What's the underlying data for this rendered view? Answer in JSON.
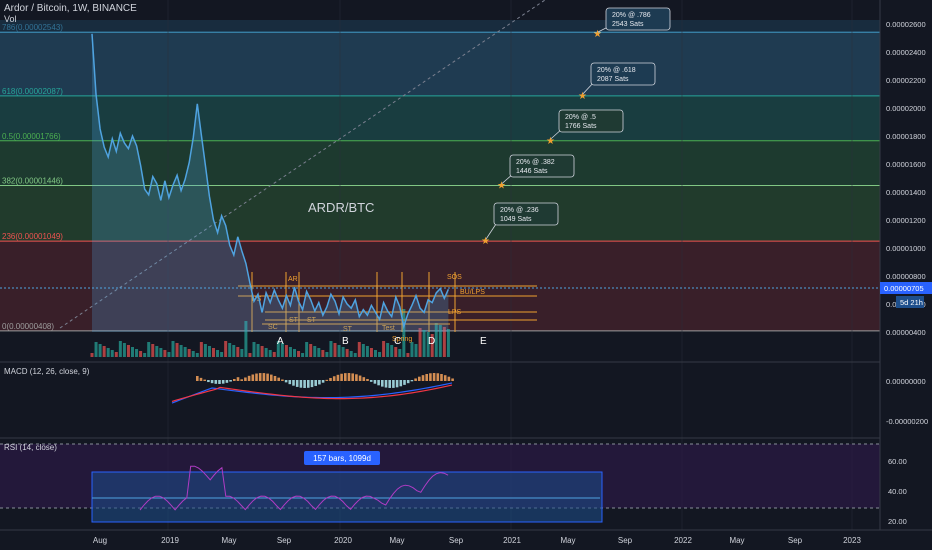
{
  "header": {
    "title": "Ardor / Bitcoin, 1W, BINANCE",
    "vol_label": "Vol"
  },
  "center_label": "ARDR/BTC",
  "colors": {
    "bg": "#131722",
    "price_line": "#4fa3e0",
    "macd_line": "#2962ff",
    "signal_line": "#f23645",
    "rsi_line": "#b03cc4",
    "grid": "#2a2e39",
    "fib_786": "#4fc3f7",
    "fib_618": "#26a69a",
    "fib_5": "#4caf50",
    "fib_382": "#81c784",
    "fib_236": "#ef5350",
    "fib_0": "#9e9e9e",
    "wyckoff": "#f0a030",
    "target_star": "#f0a030"
  },
  "fib_levels": [
    {
      "label": "786(0.00002543)",
      "value": 2.543e-05
    },
    {
      "label": "618(0.00002087)",
      "value": 2.087e-05
    },
    {
      "label": "0.5(0.00001766)",
      "value": 1.766e-05
    },
    {
      "label": "382(0.00001446)",
      "value": 1.446e-05
    },
    {
      "label": "236(0.00001049)",
      "value": 1.049e-05
    },
    {
      "label": "0(0.00000408)",
      "value": 4.08e-06
    }
  ],
  "targets": [
    {
      "line1": "20% @ .786",
      "line2": "2543 Sats",
      "value": 2.543e-05
    },
    {
      "line1": "20% @ .618",
      "line2": "2087 Sats",
      "value": 2.087e-05
    },
    {
      "line1": "20% @ .5",
      "line2": "1766 Sats",
      "value": 1.766e-05
    },
    {
      "line1": "20% @ .382",
      "line2": "1446 Sats",
      "value": 1.446e-05
    },
    {
      "line1": "20% @ .236",
      "line2": "1049 Sats",
      "value": 1.049e-05
    }
  ],
  "wyckoff_labels": [
    "PS",
    "SC",
    "AR",
    "ST",
    "ST",
    "ST",
    "Test",
    "Spring",
    "SOS",
    "BU/LPS",
    "LPS"
  ],
  "phase_labels": [
    "A",
    "B",
    "C",
    "D",
    "E"
  ],
  "price_axis_ticks": [
    "0.00002600",
    "0.00002400",
    "0.00002200",
    "0.00002000",
    "0.00001800",
    "0.00001600",
    "0.00001400",
    "0.00001200",
    "0.00001000",
    "0.00000800",
    "0.00000600",
    "0.00000400"
  ],
  "last_price": {
    "value": "0.00000705",
    "countdown": "5d 21h"
  },
  "x_axis_ticks": [
    "Aug",
    "2019",
    "May",
    "Sep",
    "2020",
    "May",
    "Sep",
    "2021",
    "May",
    "Sep",
    "2022",
    "May",
    "Sep",
    "2023"
  ],
  "macd": {
    "title": "MACD (12, 26, close, 9)",
    "ticks": [
      "0.00000000",
      "-0.00000200"
    ]
  },
  "rsi": {
    "title": "RSI (14, close)",
    "ticks": [
      "60.00",
      "40.00",
      "20.00"
    ],
    "range_label": "157 bars, 1099d"
  },
  "chart_data": {
    "type": "line",
    "title": "Ardor / Bitcoin, 1W, BINANCE",
    "series": [
      {
        "name": "ARDR/BTC",
        "values": [
          25.3,
          21,
          18.5,
          17.2,
          16.5,
          17.8,
          16.9,
          18.2,
          17.5,
          17.1,
          18,
          17.3,
          15.9,
          14.2,
          13.8,
          15.1,
          14.6,
          13.4,
          14.8,
          13.6,
          14.5,
          15.2,
          14.1,
          14.9,
          16.1,
          17.9,
          20.3,
          18.1,
          15.9,
          13.7,
          12,
          11.1,
          12.3,
          11.6,
          10.2,
          9.5,
          10.8,
          9.8,
          8.9,
          7.5,
          6.2,
          6.7,
          5.4,
          6.8,
          6.1,
          7,
          6.3,
          5.7,
          6.6,
          5.9,
          7.2,
          6.2,
          5.6,
          6.9,
          6.3,
          5.5,
          6.1,
          5.2,
          5.8,
          6.7,
          6.2,
          5.3,
          6.5,
          6,
          5.7,
          6.3,
          5.1,
          5.6,
          5.2,
          5.9,
          5.4,
          4.9,
          6.1,
          5.5,
          5.1,
          6.5,
          5.8,
          4.4,
          5.3,
          5.9,
          6.6,
          5.7,
          5.4,
          6.3,
          6.1,
          6.8,
          7.1,
          6.4,
          7.05
        ]
      }
    ],
    "x_start": "2018-07-23",
    "x_step_days": 7,
    "ylim": [
      3e-06,
      2.7e-05
    ],
    "unit": "x 1e-6 BTC"
  }
}
